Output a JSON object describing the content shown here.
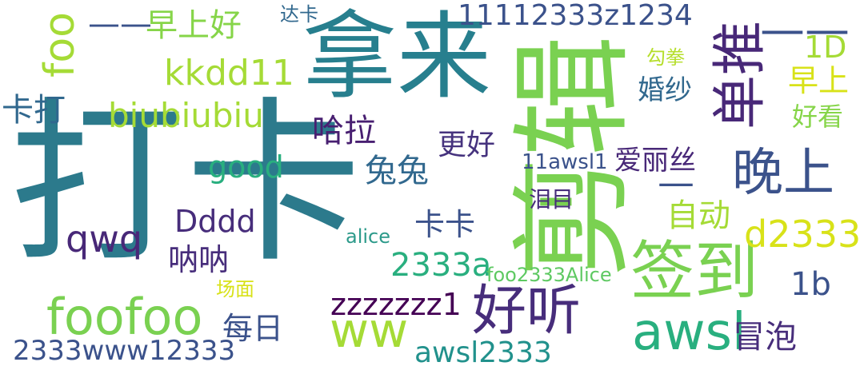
{
  "words": [
    {
      "id": "daka-big",
      "text": "打卡",
      "color": "#2c7a8c"
    },
    {
      "id": "nalai",
      "text": "拿来",
      "color": "#277f8e"
    },
    {
      "id": "jianji",
      "text": "剪辑",
      "color": "#7ad151"
    },
    {
      "id": "qiandao",
      "text": "签到",
      "color": "#7ad151"
    },
    {
      "id": "awsl",
      "text": "awsl",
      "color": "#29af7f"
    },
    {
      "id": "haoting",
      "text": "好听",
      "color": "#472d7b"
    },
    {
      "id": "foofoo",
      "text": "foofoo",
      "color": "#7ad151"
    },
    {
      "id": "ww",
      "text": "ww",
      "color": "#a5db36"
    },
    {
      "id": "wanshang",
      "text": "晚上",
      "color": "#3b528b"
    },
    {
      "id": "dantui",
      "text": "单推",
      "color": "#482878"
    },
    {
      "id": "num11112333",
      "text": "11112333z1234",
      "color": "#3b528b"
    },
    {
      "id": "kkdd11",
      "text": "kkdd11",
      "color": "#a5db36"
    },
    {
      "id": "biubiubiu",
      "text": "biubiubiu",
      "color": "#a5db36"
    },
    {
      "id": "foo",
      "text": "foo",
      "color": "#a5db36"
    },
    {
      "id": "zaoshanghao",
      "text": "早上好",
      "color": "#86d549"
    },
    {
      "id": "dash",
      "text": "——",
      "color": "#3b528b"
    },
    {
      "id": "dash2",
      "text": "——",
      "color": "#3b528b"
    },
    {
      "id": "dash-small",
      "text": "—",
      "color": "#3b528b"
    },
    {
      "id": "daka-small",
      "text": "达卡",
      "color": "#31688e"
    },
    {
      "id": "oneD",
      "text": "1D",
      "color": "#a5db36"
    },
    {
      "id": "gouquan",
      "text": "勾拳",
      "color": "#b5de2b"
    },
    {
      "id": "zaoshang",
      "text": "早上",
      "color": "#d8e219"
    },
    {
      "id": "haokan",
      "text": "好看",
      "color": "#86d549"
    },
    {
      "id": "hunsha",
      "text": "婚纱",
      "color": "#31688e"
    },
    {
      "id": "kada",
      "text": "卡打",
      "color": "#31688e"
    },
    {
      "id": "hala",
      "text": "哈拉",
      "color": "#481f71"
    },
    {
      "id": "genghao",
      "text": "更好",
      "color": "#46337e"
    },
    {
      "id": "good",
      "text": "good",
      "color": "#29af7f"
    },
    {
      "id": "tutu",
      "text": "兔兔",
      "color": "#31688e"
    },
    {
      "id": "ailisi",
      "text": "爱丽丝",
      "color": "#482878"
    },
    {
      "id": "awsl11",
      "text": "11awsl1",
      "color": "#3b528b"
    },
    {
      "id": "leimu",
      "text": "泪目",
      "color": "#472d7b"
    },
    {
      "id": "zidong",
      "text": "自动",
      "color": "#a5db36"
    },
    {
      "id": "d2333",
      "text": "d2333",
      "color": "#d8e219"
    },
    {
      "id": "dddd",
      "text": "Dddd",
      "color": "#472d7b"
    },
    {
      "id": "qwq",
      "text": "qwq",
      "color": "#482878"
    },
    {
      "id": "kaka",
      "text": "卡卡",
      "color": "#3b528b"
    },
    {
      "id": "alice",
      "text": "alice",
      "color": "#2c9a8a"
    },
    {
      "id": "nana",
      "text": "呐呐",
      "color": "#472d7b"
    },
    {
      "id": "a2333",
      "text": "2333a",
      "color": "#29af7f"
    },
    {
      "id": "foo2333",
      "text": "foo2333Alice",
      "color": "#5ec962"
    },
    {
      "id": "changmian",
      "text": "场面",
      "color": "#d8e219"
    },
    {
      "id": "oneb",
      "text": "1b",
      "color": "#3b528b"
    },
    {
      "id": "zzz",
      "text": "zzzzzzz1",
      "color": "#440154"
    },
    {
      "id": "meiri",
      "text": "每日",
      "color": "#3b528b"
    },
    {
      "id": "maopao",
      "text": "冒泡",
      "color": "#472d7b"
    },
    {
      "id": "www12333",
      "text": "2333www12333",
      "color": "#3b528b"
    },
    {
      "id": "awsl2333",
      "text": "awsl2333",
      "color": "#21918c"
    }
  ]
}
